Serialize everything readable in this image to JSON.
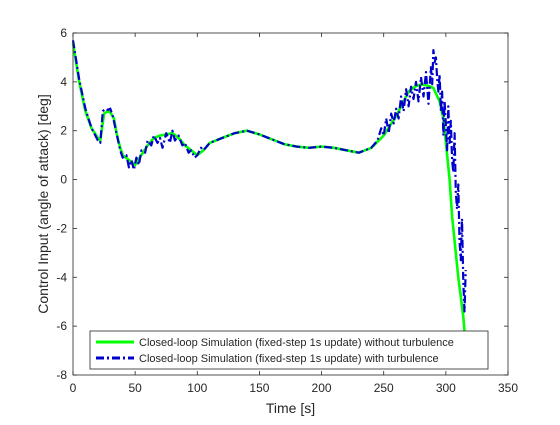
{
  "chart_data": {
    "type": "line",
    "xlabel": "Time [s]",
    "ylabel": "Control Input (angle of attack) [deg]",
    "xlim": [
      0,
      350
    ],
    "ylim": [
      -8,
      6
    ],
    "xticks": [
      "0",
      "50",
      "100",
      "150",
      "200",
      "250",
      "300",
      "350"
    ],
    "yticks": [
      "-8",
      "-6",
      "-4",
      "-2",
      "0",
      "2",
      "4",
      "6"
    ],
    "grid": false,
    "legend_position": "bottom",
    "series": [
      {
        "name": "Closed-loop Simulation (fixed-step 1s update) without turbulence",
        "color": "#00ff00",
        "style": "solid",
        "x": [
          0,
          5,
          10,
          15,
          20,
          22,
          25,
          28,
          30,
          33,
          35,
          38,
          40,
          45,
          50,
          55,
          60,
          65,
          70,
          75,
          80,
          85,
          90,
          95,
          100,
          105,
          110,
          120,
          130,
          140,
          150,
          160,
          170,
          180,
          190,
          200,
          210,
          220,
          230,
          240,
          250,
          255,
          260,
          265,
          270,
          275,
          280,
          285,
          290,
          295,
          298,
          300,
          303,
          305,
          308,
          310,
          312,
          313,
          314,
          315,
          316
        ],
        "y": [
          5.6,
          4.0,
          2.8,
          2.1,
          1.7,
          1.6,
          2.7,
          2.8,
          2.75,
          2.5,
          1.9,
          1.3,
          1.0,
          0.8,
          0.6,
          1.0,
          1.4,
          1.7,
          1.8,
          1.85,
          1.9,
          1.7,
          1.4,
          1.2,
          1.0,
          1.2,
          1.5,
          1.7,
          1.9,
          2.0,
          1.85,
          1.65,
          1.45,
          1.35,
          1.3,
          1.35,
          1.3,
          1.2,
          1.1,
          1.3,
          1.8,
          2.2,
          2.6,
          3.1,
          3.6,
          3.8,
          3.9,
          3.85,
          3.75,
          3.2,
          2.5,
          1.5,
          0.0,
          -1.5,
          -3.0,
          -4.0,
          -4.8,
          -5.2,
          -5.6,
          -6.2,
          -6.3
        ]
      },
      {
        "name": "Closed-loop Simulation (fixed-step 1s update) with turbulence",
        "color": "#0000cc",
        "style": "dashdot",
        "x": [
          0,
          5,
          10,
          15,
          20,
          22,
          24,
          26,
          28,
          30,
          32,
          35,
          38,
          40,
          43,
          45,
          47,
          49,
          51,
          53,
          55,
          58,
          60,
          63,
          65,
          68,
          70,
          72,
          75,
          78,
          80,
          82,
          85,
          88,
          90,
          93,
          95,
          98,
          100,
          103,
          105,
          110,
          120,
          130,
          140,
          150,
          160,
          170,
          180,
          190,
          200,
          210,
          220,
          230,
          240,
          245,
          248,
          250,
          252,
          254,
          256,
          258,
          260,
          262,
          264,
          266,
          268,
          270,
          272,
          274,
          276,
          278,
          280,
          282,
          284,
          286,
          288,
          289,
          290,
          291,
          292,
          293,
          294,
          295,
          296,
          297,
          298,
          299,
          300,
          301,
          302,
          303,
          304,
          305,
          306,
          307,
          308,
          309,
          310,
          311,
          312,
          313,
          314,
          315,
          316
        ],
        "y": [
          5.7,
          4.1,
          2.9,
          2.1,
          1.6,
          1.5,
          2.8,
          2.9,
          2.85,
          2.9,
          2.6,
          1.9,
          1.2,
          0.9,
          1.0,
          0.5,
          0.8,
          0.4,
          0.9,
          0.6,
          1.2,
          1.1,
          1.6,
          1.4,
          1.8,
          1.5,
          1.7,
          1.3,
          1.9,
          1.5,
          2.0,
          1.6,
          1.8,
          1.4,
          1.5,
          1.1,
          1.2,
          0.9,
          1.0,
          1.3,
          1.2,
          1.5,
          1.7,
          1.9,
          2.0,
          1.85,
          1.65,
          1.45,
          1.35,
          1.3,
          1.35,
          1.3,
          1.2,
          1.1,
          1.3,
          1.6,
          2.1,
          1.8,
          2.5,
          1.9,
          2.7,
          2.3,
          2.9,
          2.5,
          3.4,
          2.8,
          3.7,
          3.0,
          3.8,
          3.3,
          4.0,
          3.2,
          4.2,
          3.4,
          4.4,
          3.1,
          4.6,
          3.9,
          5.3,
          4.8,
          5.0,
          4.1,
          3.6,
          4.3,
          2.8,
          3.6,
          1.8,
          3.2,
          2.2,
          1.2,
          3.0,
          1.5,
          2.4,
          0.8,
          0.3,
          1.9,
          -0.5,
          -1.2,
          -0.2,
          -2.5,
          -3.3,
          -1.6,
          -4.2,
          -5.4,
          -3.7
        ]
      }
    ]
  }
}
